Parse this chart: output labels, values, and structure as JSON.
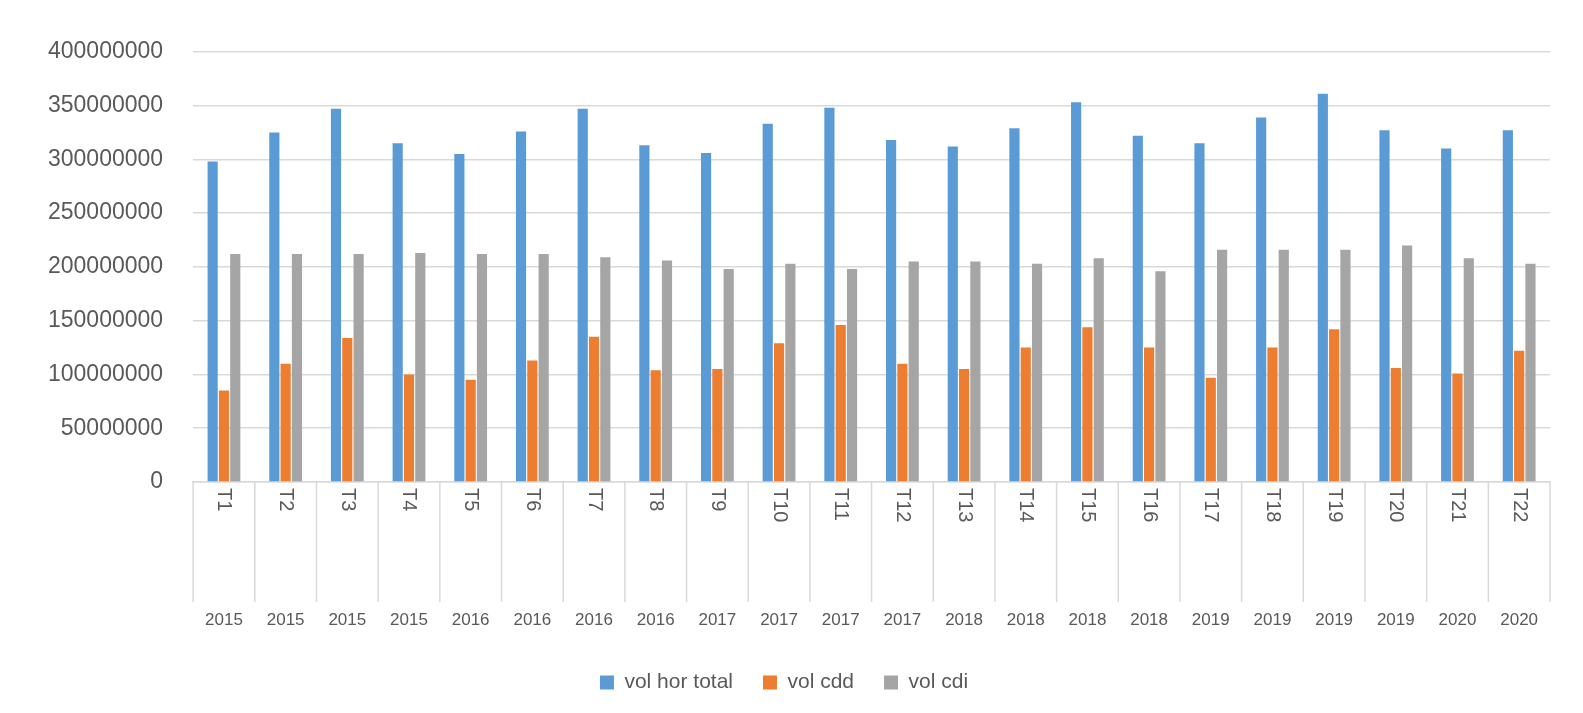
{
  "chart_data": {
    "type": "bar",
    "categories": [
      "T1 2015",
      "T2 2015",
      "T3 2015",
      "T4 2015",
      "T5 2016",
      "T6 2016",
      "T7 2016",
      "T8 2016",
      "T9 2017",
      "T10 2017",
      "T11 2017",
      "T12 2017",
      "T13 2018",
      "T14 2018",
      "T15 2018",
      "T16 2018",
      "T17 2019",
      "T18 2019",
      "T19 2019",
      "T20 2019",
      "T21 2020",
      "T22 2020"
    ],
    "series": [
      {
        "name": "vol hor total",
        "color": "#5b9bd5",
        "values": [
          298000000,
          325000000,
          347000000,
          315000000,
          305000000,
          326000000,
          347000000,
          313000000,
          306000000,
          333000000,
          348000000,
          318000000,
          312000000,
          329000000,
          353000000,
          322000000,
          315000000,
          339000000,
          361000000,
          327000000,
          310000000,
          327000000
        ]
      },
      {
        "name": "vol cdd",
        "color": "#ed7d31",
        "values": [
          85000000,
          110000000,
          134000000,
          100000000,
          95000000,
          113000000,
          135000000,
          104000000,
          105000000,
          129000000,
          146000000,
          110000000,
          105000000,
          125000000,
          144000000,
          125000000,
          97000000,
          125000000,
          142000000,
          106000000,
          101000000,
          122000000
        ]
      },
      {
        "name": "vol cdi",
        "color": "#a5a5a5",
        "values": [
          212000000,
          212000000,
          212000000,
          213000000,
          212000000,
          212000000,
          209000000,
          206000000,
          198000000,
          203000000,
          198000000,
          205000000,
          205000000,
          203000000,
          208000000,
          196000000,
          216000000,
          216000000,
          216000000,
          220000000,
          208000000,
          203000000
        ]
      }
    ],
    "ylim": [
      0,
      400000000
    ],
    "yticks": [
      0,
      50000000,
      100000000,
      150000000,
      200000000,
      250000000,
      300000000,
      350000000,
      400000000
    ],
    "grid": "y",
    "legend": "bottom"
  }
}
